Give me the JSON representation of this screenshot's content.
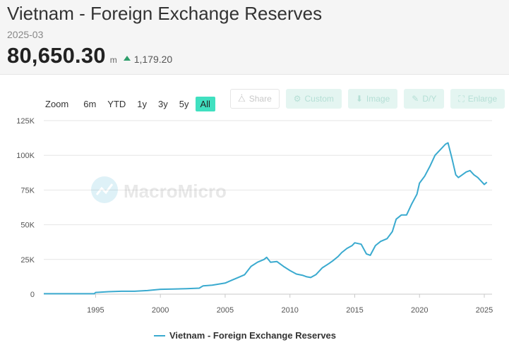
{
  "header": {
    "title": "Vietnam - Foreign Exchange Reserves",
    "period": "2025-03",
    "value": "80,650.30",
    "unit": "m",
    "change": "1,179.20"
  },
  "zoom": {
    "label": "Zoom",
    "options": [
      "6m",
      "YTD",
      "1y",
      "3y",
      "5y",
      "All"
    ],
    "active": "All"
  },
  "toolbar": {
    "share": "Share",
    "custom": "Custom",
    "image": "Image",
    "dy": "D/Y",
    "enlarge": "Enlarge"
  },
  "watermark": "MacroMicro",
  "colors": {
    "line": "#3aaacf",
    "accent": "#40e0c0",
    "up": "#2e9e6b"
  },
  "chart_data": {
    "type": "line",
    "ylim": [
      0,
      125000
    ],
    "y_ticks": [
      "0",
      "25K",
      "50K",
      "75K",
      "100K",
      "125K"
    ],
    "y_tick_values": [
      0,
      25000,
      50000,
      75000,
      100000,
      125000
    ],
    "x_ticks": [
      "1995",
      "2000",
      "2005",
      "2010",
      "2015",
      "2020",
      "2025"
    ],
    "xlim": [
      1991.0,
      2025.6
    ],
    "grid": true,
    "legend_position": "bottom",
    "series": [
      {
        "name": "Vietnam - Foreign Exchange Reserves",
        "x": [
          1991.0,
          1994.9,
          1995.0,
          1996.0,
          1997.0,
          1998.0,
          1999.0,
          2000.0,
          2001.0,
          2002.0,
          2003.0,
          2003.3,
          2004.0,
          2005.0,
          2005.5,
          2006.0,
          2006.5,
          2007.0,
          2007.5,
          2008.0,
          2008.2,
          2008.5,
          2009.0,
          2009.5,
          2010.0,
          2010.5,
          2011.0,
          2011.3,
          2011.6,
          2012.0,
          2012.5,
          2013.0,
          2013.3,
          2013.7,
          2014.0,
          2014.4,
          2014.8,
          2015.0,
          2015.5,
          2015.9,
          2016.2,
          2016.6,
          2017.0,
          2017.5,
          2017.9,
          2018.2,
          2018.6,
          2019.0,
          2019.4,
          2019.8,
          2020.0,
          2020.4,
          2020.8,
          2021.2,
          2021.6,
          2022.0,
          2022.2,
          2022.5,
          2022.8,
          2023.0,
          2023.3,
          2023.6,
          2023.9,
          2024.2,
          2024.5,
          2024.8,
          2025.0,
          2025.2
        ],
        "values": [
          300,
          300,
          1200,
          1800,
          2100,
          2100,
          2600,
          3500,
          3700,
          3900,
          4300,
          6000,
          6500,
          8000,
          10000,
          12000,
          14000,
          20000,
          23000,
          25000,
          26500,
          23000,
          23500,
          20000,
          17000,
          14500,
          13500,
          12500,
          12000,
          14000,
          19000,
          22000,
          24000,
          27000,
          30000,
          33000,
          35000,
          37000,
          36000,
          29000,
          28000,
          35000,
          38000,
          40000,
          45000,
          54000,
          57000,
          57000,
          65000,
          72000,
          80000,
          85000,
          92000,
          100000,
          104000,
          108000,
          109000,
          98000,
          86000,
          84000,
          86000,
          88000,
          89000,
          86000,
          84000,
          81000,
          79000,
          80650
        ]
      }
    ]
  }
}
